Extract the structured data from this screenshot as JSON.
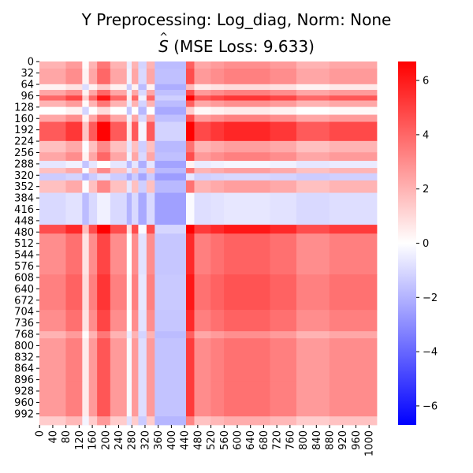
{
  "chart_data": {
    "type": "heatmap",
    "title_line1": "Y Preprocessing: Log_diag, Norm: None",
    "title_line2_symbol": "S",
    "title_line2_rest": " (MSE Loss: 9.633)",
    "matrix_size": 1024,
    "y_tick_labels": [
      "0",
      "32",
      "64",
      "96",
      "128",
      "160",
      "192",
      "224",
      "256",
      "288",
      "320",
      "352",
      "384",
      "416",
      "448",
      "480",
      "512",
      "544",
      "576",
      "608",
      "640",
      "672",
      "704",
      "736",
      "768",
      "800",
      "832",
      "864",
      "896",
      "928",
      "960",
      "992"
    ],
    "x_tick_labels": [
      "0",
      "40",
      "80",
      "120",
      "160",
      "200",
      "240",
      "280",
      "320",
      "360",
      "400",
      "440",
      "480",
      "520",
      "560",
      "600",
      "640",
      "680",
      "720",
      "760",
      "800",
      "840",
      "880",
      "920",
      "960",
      "1000"
    ],
    "colorbar": {
      "vmin": -6.7,
      "vmax": 6.7,
      "ticks": [
        -6,
        -4,
        -2,
        0,
        2,
        4,
        6
      ],
      "tick_labels": [
        "−6",
        "−4",
        "−2",
        "0",
        "2",
        "4",
        "6"
      ],
      "colormap": "bwr",
      "low_color": "#0000ff",
      "mid_color": "#ffffff",
      "high_color": "#ff0000"
    },
    "row_profile": [
      {
        "from": 0,
        "to": 20,
        "value": 1.5
      },
      {
        "from": 20,
        "to": 64,
        "value": 2.0
      },
      {
        "from": 64,
        "to": 80,
        "value": -1.0
      },
      {
        "from": 80,
        "to": 96,
        "value": 2.0
      },
      {
        "from": 96,
        "to": 110,
        "value": 4.5
      },
      {
        "from": 110,
        "to": 128,
        "value": 1.5
      },
      {
        "from": 128,
        "to": 150,
        "value": -1.5
      },
      {
        "from": 150,
        "to": 170,
        "value": 2.0
      },
      {
        "from": 170,
        "to": 224,
        "value": 5.0
      },
      {
        "from": 224,
        "to": 256,
        "value": 1.0
      },
      {
        "from": 256,
        "to": 280,
        "value": 2.0
      },
      {
        "from": 280,
        "to": 300,
        "value": -2.5
      },
      {
        "from": 300,
        "to": 315,
        "value": 1.0
      },
      {
        "from": 315,
        "to": 335,
        "value": -3.5
      },
      {
        "from": 335,
        "to": 370,
        "value": 1.0
      },
      {
        "from": 370,
        "to": 460,
        "value": -3.0
      },
      {
        "from": 460,
        "to": 485,
        "value": 5.5
      },
      {
        "from": 485,
        "to": 600,
        "value": 3.0
      },
      {
        "from": 600,
        "to": 700,
        "value": 3.5
      },
      {
        "from": 700,
        "to": 760,
        "value": 3.0
      },
      {
        "from": 760,
        "to": 780,
        "value": 1.5
      },
      {
        "from": 780,
        "to": 900,
        "value": 2.5
      },
      {
        "from": 900,
        "to": 1000,
        "value": 2.5
      },
      {
        "from": 1000,
        "to": 1024,
        "value": 0.5
      }
    ],
    "col_profile": [
      {
        "from": 0,
        "to": 80,
        "value": 2.0
      },
      {
        "from": 80,
        "to": 130,
        "value": 3.0
      },
      {
        "from": 130,
        "to": 150,
        "value": -1.0
      },
      {
        "from": 150,
        "to": 175,
        "value": 2.0
      },
      {
        "from": 175,
        "to": 215,
        "value": 4.5
      },
      {
        "from": 215,
        "to": 265,
        "value": 2.0
      },
      {
        "from": 265,
        "to": 280,
        "value": -2.0
      },
      {
        "from": 280,
        "to": 300,
        "value": 2.0
      },
      {
        "from": 300,
        "to": 325,
        "value": -3.0
      },
      {
        "from": 325,
        "to": 350,
        "value": 2.0
      },
      {
        "from": 350,
        "to": 445,
        "value": -4.0
      },
      {
        "from": 445,
        "to": 470,
        "value": 5.5
      },
      {
        "from": 470,
        "to": 520,
        "value": 2.5
      },
      {
        "from": 520,
        "to": 560,
        "value": 3.0
      },
      {
        "from": 560,
        "to": 700,
        "value": 3.5
      },
      {
        "from": 700,
        "to": 780,
        "value": 3.0
      },
      {
        "from": 780,
        "to": 880,
        "value": 2.0
      },
      {
        "from": 880,
        "to": 1024,
        "value": 2.5
      }
    ]
  }
}
